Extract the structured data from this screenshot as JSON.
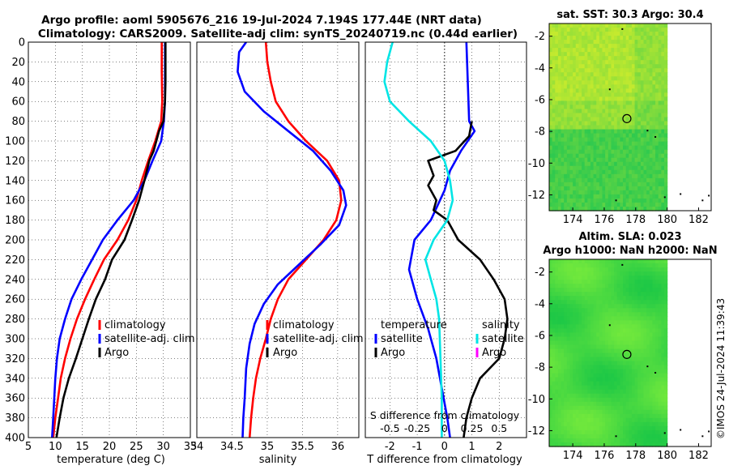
{
  "title": {
    "line1": "Argo profile: aoml 5905676_216 19-Jul-2024 7.194S 177.44E (NRT data)",
    "line2": "Climatology: CARS2009. Satellite-adj clim: synTS_20240719.nc (0.44d earlier)"
  },
  "watermark": "©IMOS 24-Jul-2024 11:39:43",
  "colors": {
    "climatology": "#ff0000",
    "satellite": "#0000ff",
    "argo": "#000000",
    "cyan": "#00e5e5",
    "magenta": "#ff00ff"
  },
  "chart_data": [
    {
      "type": "line",
      "name": "temperature-profile",
      "xlabel": "temperature (deg C)",
      "xlim": [
        5,
        35
      ],
      "xticks": [
        "5",
        "10",
        "15",
        "20",
        "25",
        "30",
        "35"
      ],
      "ylim": [
        0,
        400
      ],
      "yticks": [
        "0",
        "20",
        "40",
        "60",
        "80",
        "100",
        "120",
        "140",
        "160",
        "180",
        "200",
        "220",
        "240",
        "260",
        "280",
        "300",
        "320",
        "340",
        "360",
        "380",
        "400"
      ],
      "legend": [
        "climatology",
        "satellite-adj. clim",
        "Argo"
      ],
      "series": [
        {
          "name": "climatology",
          "color": "#ff0000",
          "points": [
            [
              29.7,
              0
            ],
            [
              29.7,
              30
            ],
            [
              29.8,
              60
            ],
            [
              29.6,
              80
            ],
            [
              28.5,
              100
            ],
            [
              27.2,
              120
            ],
            [
              26.0,
              140
            ],
            [
              25.0,
              160
            ],
            [
              23.5,
              180
            ],
            [
              21.5,
              200
            ],
            [
              19.0,
              220
            ],
            [
              17.2,
              240
            ],
            [
              15.5,
              260
            ],
            [
              14.0,
              280
            ],
            [
              12.8,
              300
            ],
            [
              11.8,
              320
            ],
            [
              11.0,
              340
            ],
            [
              10.5,
              360
            ],
            [
              10.0,
              380
            ],
            [
              9.6,
              400
            ]
          ]
        },
        {
          "name": "satellite-adj. clim",
          "color": "#0000ff",
          "points": [
            [
              30.3,
              0
            ],
            [
              30.3,
              30
            ],
            [
              30.3,
              60
            ],
            [
              30.1,
              80
            ],
            [
              29.6,
              100
            ],
            [
              28.0,
              120
            ],
            [
              26.5,
              140
            ],
            [
              24.5,
              160
            ],
            [
              21.5,
              180
            ],
            [
              18.8,
              200
            ],
            [
              16.8,
              220
            ],
            [
              14.8,
              240
            ],
            [
              13.0,
              260
            ],
            [
              11.8,
              280
            ],
            [
              10.8,
              300
            ],
            [
              10.3,
              320
            ],
            [
              10.0,
              340
            ],
            [
              9.8,
              360
            ],
            [
              9.6,
              380
            ],
            [
              9.4,
              400
            ]
          ]
        },
        {
          "name": "Argo",
          "color": "#000000",
          "points": [
            [
              30.4,
              0
            ],
            [
              30.4,
              40
            ],
            [
              30.3,
              60
            ],
            [
              30.0,
              80
            ],
            [
              29.2,
              90
            ],
            [
              28.2,
              110
            ],
            [
              27.4,
              120
            ],
            [
              26.5,
              140
            ],
            [
              25.5,
              160
            ],
            [
              24.2,
              180
            ],
            [
              22.8,
              200
            ],
            [
              20.5,
              220
            ],
            [
              19.2,
              240
            ],
            [
              17.5,
              260
            ],
            [
              16.2,
              280
            ],
            [
              15.0,
              300
            ],
            [
              13.8,
              320
            ],
            [
              12.5,
              340
            ],
            [
              11.5,
              360
            ],
            [
              10.8,
              380
            ],
            [
              10.2,
              400
            ]
          ]
        }
      ]
    },
    {
      "type": "line",
      "name": "salinity-profile",
      "xlabel": "salinity",
      "xlim": [
        34,
        36.3
      ],
      "xticks": [
        "34",
        "34.5",
        "35",
        "35.5",
        "36"
      ],
      "ylim": [
        0,
        400
      ],
      "legend": [
        "climatology",
        "satellite-adj. clim",
        "Argo"
      ],
      "series": [
        {
          "name": "climatology",
          "color": "#ff0000",
          "points": [
            [
              34.98,
              0
            ],
            [
              35.0,
              20
            ],
            [
              35.05,
              40
            ],
            [
              35.12,
              60
            ],
            [
              35.3,
              80
            ],
            [
              35.55,
              100
            ],
            [
              35.85,
              120
            ],
            [
              36.02,
              140
            ],
            [
              36.05,
              160
            ],
            [
              35.98,
              180
            ],
            [
              35.8,
              200
            ],
            [
              35.55,
              220
            ],
            [
              35.3,
              240
            ],
            [
              35.15,
              260
            ],
            [
              35.05,
              280
            ],
            [
              34.98,
              300
            ],
            [
              34.9,
              320
            ],
            [
              34.84,
              340
            ],
            [
              34.8,
              360
            ],
            [
              34.77,
              380
            ],
            [
              34.75,
              400
            ]
          ]
        },
        {
          "name": "satellite-adj. clim",
          "color": "#0000ff",
          "points": [
            [
              34.7,
              0
            ],
            [
              34.6,
              10
            ],
            [
              34.58,
              30
            ],
            [
              34.68,
              50
            ],
            [
              34.95,
              70
            ],
            [
              35.3,
              90
            ],
            [
              35.65,
              110
            ],
            [
              35.9,
              130
            ],
            [
              36.08,
              150
            ],
            [
              36.12,
              165
            ],
            [
              36.02,
              185
            ],
            [
              35.75,
              205
            ],
            [
              35.45,
              225
            ],
            [
              35.15,
              245
            ],
            [
              34.95,
              265
            ],
            [
              34.82,
              285
            ],
            [
              34.75,
              305
            ],
            [
              34.7,
              330
            ],
            [
              34.68,
              360
            ],
            [
              34.66,
              380
            ],
            [
              34.65,
              400
            ]
          ]
        }
      ]
    },
    {
      "type": "line",
      "name": "difference-profile",
      "xlabel": "T difference from climatology",
      "xlim": [
        -2.9,
        3.0
      ],
      "xticks": [
        "-2",
        "-1",
        "0",
        "1",
        "2"
      ],
      "top_label": "S difference from climatology",
      "top_ticks": [
        "-0.5",
        "-0.25",
        "0",
        "0.25",
        "0.5"
      ],
      "ylim": [
        0,
        400
      ],
      "legend_left_title": "temperature",
      "legend_left": [
        "satellite",
        "Argo"
      ],
      "legend_right_title": "salinity",
      "legend_right": [
        "satellite",
        "Argo"
      ],
      "series": [
        {
          "name": "T satellite",
          "color": "#0000ff",
          "points": [
            [
              0.8,
              0
            ],
            [
              0.85,
              40
            ],
            [
              0.9,
              80
            ],
            [
              1.1,
              90
            ],
            [
              0.6,
              110
            ],
            [
              0.2,
              130
            ],
            [
              0.0,
              150
            ],
            [
              -0.5,
              180
            ],
            [
              -1.1,
              200
            ],
            [
              -1.3,
              230
            ],
            [
              -1.0,
              260
            ],
            [
              -0.6,
              290
            ],
            [
              -0.3,
              320
            ],
            [
              -0.1,
              350
            ],
            [
              0.1,
              380
            ],
            [
              0.2,
              400
            ]
          ]
        },
        {
          "name": "T Argo",
          "color": "#000000",
          "points": [
            [
              1.0,
              80
            ],
            [
              0.9,
              95
            ],
            [
              0.4,
              110
            ],
            [
              -0.6,
              120
            ],
            [
              -0.4,
              135
            ],
            [
              -0.6,
              145
            ],
            [
              -0.3,
              160
            ],
            [
              -0.4,
              170
            ],
            [
              0.1,
              180
            ],
            [
              0.5,
              200
            ],
            [
              1.3,
              220
            ],
            [
              1.8,
              240
            ],
            [
              2.2,
              260
            ],
            [
              2.3,
              280
            ],
            [
              2.2,
              300
            ],
            [
              2.0,
              320
            ],
            [
              1.3,
              340
            ],
            [
              1.0,
              360
            ],
            [
              0.8,
              380
            ],
            [
              0.7,
              400
            ]
          ]
        },
        {
          "name": "S satellite",
          "color": "#00e5e5",
          "points": [
            [
              -1.9,
              0
            ],
            [
              -2.1,
              20
            ],
            [
              -2.2,
              40
            ],
            [
              -2.0,
              60
            ],
            [
              -1.3,
              80
            ],
            [
              -0.5,
              100
            ],
            [
              0.0,
              120
            ],
            [
              0.2,
              140
            ],
            [
              0.3,
              160
            ],
            [
              0.1,
              180
            ],
            [
              -0.4,
              200
            ],
            [
              -0.7,
              220
            ],
            [
              -0.5,
              240
            ],
            [
              -0.3,
              260
            ],
            [
              -0.2,
              280
            ],
            [
              -0.15,
              320
            ],
            [
              -0.1,
              360
            ],
            [
              -0.1,
              400
            ]
          ]
        }
      ]
    },
    {
      "type": "heatmap",
      "name": "sst-map",
      "title": "sat. SST: 30.3 Argo: 30.4",
      "xticks": [
        "174",
        "176",
        "178",
        "180",
        "182"
      ],
      "yticks": [
        "-2",
        "-4",
        "-6",
        "-8",
        "-10",
        "-12"
      ],
      "xlim": [
        172.5,
        182.8
      ],
      "ylim": [
        -13.0,
        -1.2
      ],
      "marker": {
        "lon": 177.44,
        "lat": -7.194
      }
    },
    {
      "type": "heatmap",
      "name": "sla-map",
      "title_line1": "Altim. SLA: 0.023",
      "title_line2": "Argo h1000: NaN h2000: NaN",
      "xticks": [
        "174",
        "176",
        "178",
        "180",
        "182"
      ],
      "yticks": [
        "-2",
        "-4",
        "-6",
        "-8",
        "-10",
        "-12"
      ],
      "xlim": [
        172.5,
        182.8
      ],
      "ylim": [
        -13.0,
        -1.2
      ],
      "marker": {
        "lon": 177.44,
        "lat": -7.194
      }
    }
  ]
}
